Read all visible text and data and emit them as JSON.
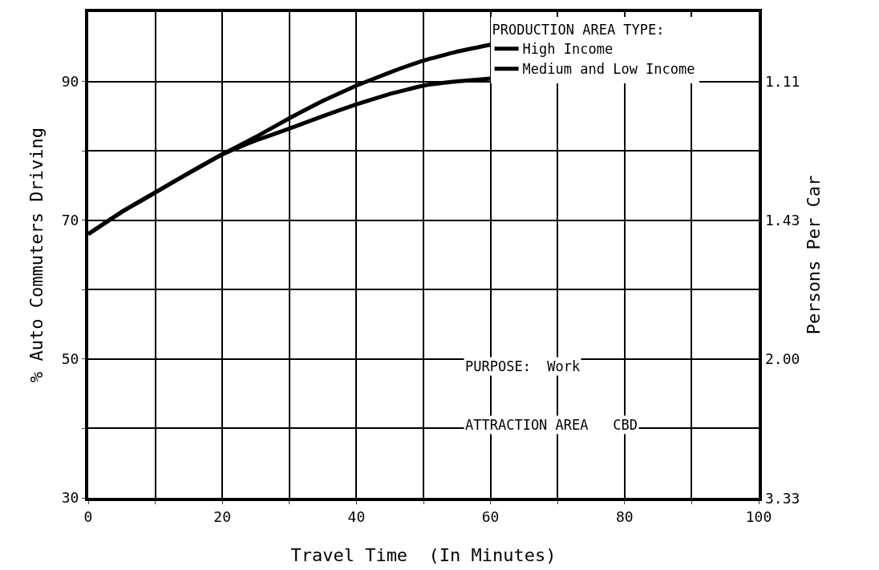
{
  "chart_data": {
    "type": "line",
    "xlabel": "Travel Time  (In Minutes)",
    "ylabel": "% Auto Commuters Driving",
    "y2label": "Persons Per Car",
    "legend_title": "PRODUCTION AREA TYPE:",
    "legend": "top right",
    "grid": true,
    "marker": "none",
    "line_style": "solid",
    "x": [
      0,
      5,
      10,
      15,
      20,
      25,
      30,
      35,
      40,
      45,
      50,
      55,
      60
    ],
    "series": [
      {
        "name": "High Income",
        "color": "#000000",
        "values": [
          68,
          71.2,
          74,
          76.8,
          79.5,
          82,
          84.7,
          87.2,
          89.4,
          91.3,
          93,
          94.3,
          95.3
        ]
      },
      {
        "name": "Medium and Low Income",
        "color": "#000000",
        "values": [
          68,
          71.2,
          74,
          76.8,
          79.5,
          81.5,
          83.2,
          85,
          86.7,
          88.2,
          89.4,
          90,
          90.4
        ]
      }
    ],
    "xlim": [
      0,
      100
    ],
    "xticks": [
      0,
      {
        "value": 10,
        "label": null
      },
      20,
      {
        "value": 30,
        "label": null
      },
      40,
      {
        "value": 50,
        "label": null
      },
      60,
      {
        "value": 70,
        "label": null
      },
      80,
      {
        "value": 90,
        "label": null
      },
      100
    ],
    "ylim": [
      30,
      100
    ],
    "yticks": [
      30,
      {
        "value": 40,
        "label": null
      },
      50,
      {
        "value": 60,
        "label": null
      },
      70,
      {
        "value": 80,
        "label": null
      },
      90
    ],
    "annotations": [
      "PURPOSE:  Work",
      "ATTRACTION AREA   CBD",
      "1.11",
      "1.43",
      "2.00",
      "3.33"
    ]
  }
}
